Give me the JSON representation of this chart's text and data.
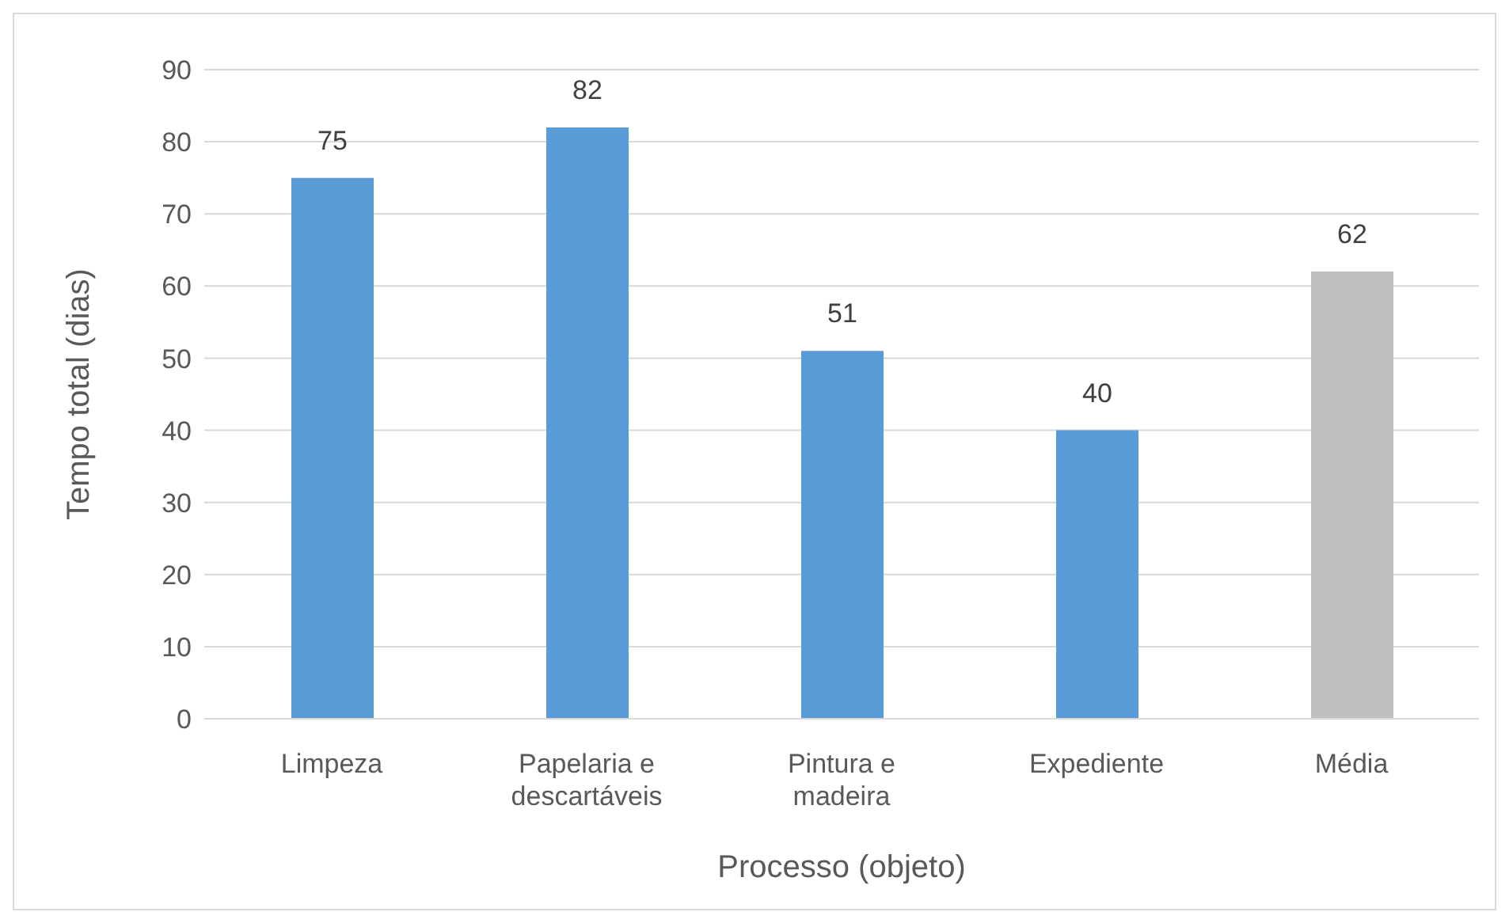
{
  "chart_data": {
    "type": "bar",
    "xlabel": "Processo (objeto)",
    "ylabel": "Tempo total (dias)",
    "categories": [
      "Limpeza",
      "Papelaria e descartáveis",
      "Pintura e madeira",
      "Expediente",
      "Média"
    ],
    "values": [
      75,
      82,
      51,
      40,
      62
    ],
    "colors": [
      "#5b9bd5",
      "#5b9bd5",
      "#5b9bd5",
      "#5b9bd5",
      "#bfbfbf"
    ],
    "ylim": [
      0,
      90
    ],
    "yticks": [
      0,
      10,
      20,
      30,
      40,
      50,
      60,
      70,
      80,
      90
    ],
    "grid": "y",
    "data_labels": true
  }
}
